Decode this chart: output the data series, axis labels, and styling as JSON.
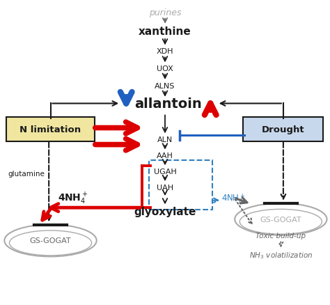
{
  "fig_width": 4.74,
  "fig_height": 4.39,
  "dpi": 100,
  "bg_color": "#ffffff",
  "colors": {
    "black": "#1a1a1a",
    "red": "#dd0000",
    "blue": "#2060c0",
    "gray": "#888888",
    "light_gray": "#aaaaaa",
    "dark_gray": "#666666",
    "tan": "#f0e6a0",
    "light_blue_box": "#c8d8ec",
    "dashed_blue": "#3080c0"
  },
  "xlim": [
    0,
    10
  ],
  "ylim": [
    0,
    10
  ]
}
